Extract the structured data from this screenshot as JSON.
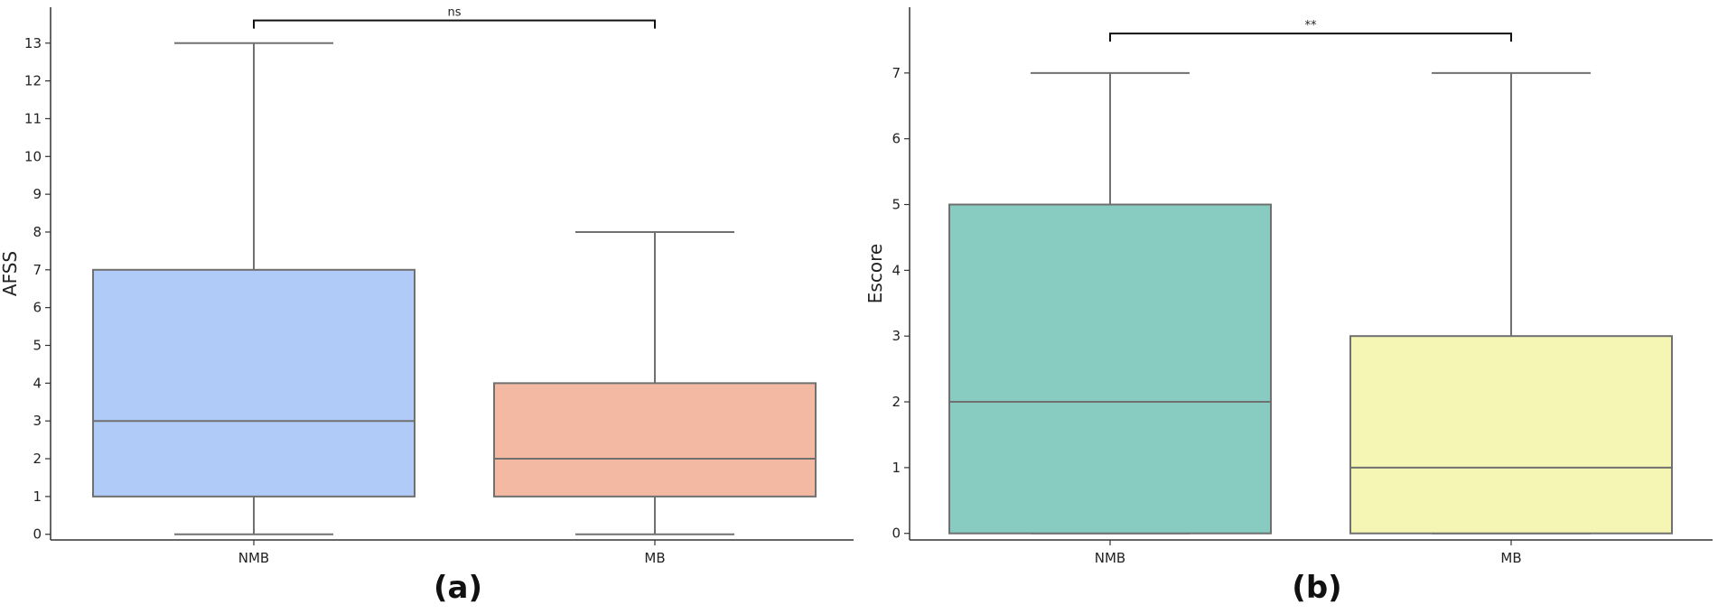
{
  "chart_data": [
    {
      "type": "box",
      "panel_label": "(a)",
      "ylabel": "AFSS",
      "ylim": [
        -0.15,
        13.95
      ],
      "yticks": [
        0,
        1,
        2,
        3,
        4,
        5,
        6,
        7,
        8,
        9,
        10,
        11,
        12,
        13
      ],
      "categories": [
        "NMB",
        "MB"
      ],
      "boxes": [
        {
          "category": "NMB",
          "whisker_low": 0,
          "q1": 1,
          "median": 3,
          "q3": 7,
          "whisker_high": 13,
          "color": "#b1cbf8"
        },
        {
          "category": "MB",
          "whisker_low": 0,
          "q1": 1,
          "median": 2,
          "q3": 4,
          "whisker_high": 8,
          "color": "#f4b9a3"
        }
      ],
      "significance": {
        "from": "NMB",
        "to": "MB",
        "label": "ns",
        "y": 13.6
      }
    },
    {
      "type": "box",
      "panel_label": "(b)",
      "ylabel": "Escore",
      "ylim": [
        -0.1,
        8.0
      ],
      "yticks": [
        0,
        1,
        2,
        3,
        4,
        5,
        6,
        7
      ],
      "categories": [
        "NMB",
        "MB"
      ],
      "boxes": [
        {
          "category": "NMB",
          "whisker_low": 0,
          "q1": 0,
          "median": 2,
          "q3": 5,
          "whisker_high": 7,
          "color": "#88ccc1"
        },
        {
          "category": "MB",
          "whisker_low": 0,
          "q1": 0,
          "median": 1,
          "q3": 3,
          "whisker_high": 7,
          "color": "#f5f6b4"
        }
      ],
      "significance": {
        "from": "NMB",
        "to": "MB",
        "label": "**",
        "y": 7.6
      }
    }
  ]
}
